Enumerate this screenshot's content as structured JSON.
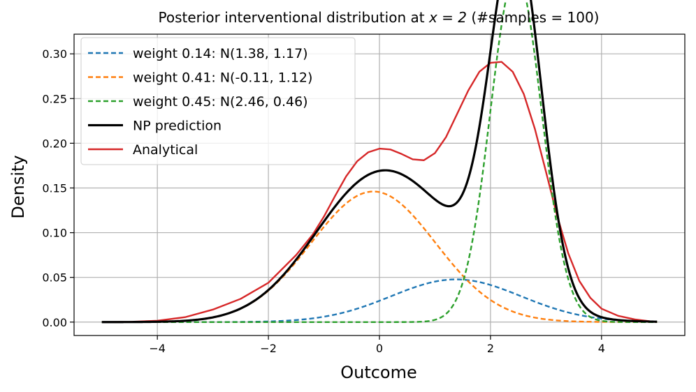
{
  "chart_data": {
    "type": "line",
    "title_prefix": "Posterior interventional distribution at ",
    "title_math": "x = 2",
    "title_suffix": " (#samples = 100)",
    "xlabel": "Outcome",
    "ylabel": "Density",
    "xlim": [
      -5.5,
      5.5
    ],
    "ylim": [
      -0.015,
      0.322
    ],
    "xticks": [
      -4,
      -2,
      0,
      2,
      4
    ],
    "xtick_labels": [
      "−4",
      "−2",
      "0",
      "2",
      "4"
    ],
    "yticks": [
      0.0,
      0.05,
      0.1,
      0.15,
      0.2,
      0.25,
      0.3
    ],
    "ytick_labels": [
      "0.00",
      "0.05",
      "0.10",
      "0.15",
      "0.20",
      "0.25",
      "0.30"
    ],
    "grid": true,
    "legend_position": "upper-left",
    "x_range": [
      -5,
      5
    ],
    "series": [
      {
        "name": "weight 0.14: N(1.38, 1.17)",
        "kind": "gaussian",
        "weight": 0.14,
        "mean": 1.38,
        "std": 1.17,
        "color": "#1f77b4",
        "dashed": true
      },
      {
        "name": "weight 0.41: N(-0.11, 1.12)",
        "kind": "gaussian",
        "weight": 0.41,
        "mean": -0.11,
        "std": 1.12,
        "color": "#ff7f0e",
        "dashed": true
      },
      {
        "name": "weight 0.45: N(2.46, 0.46)",
        "kind": "gaussian",
        "weight": 0.45,
        "mean": 2.46,
        "std": 0.46,
        "color": "#2ca02c",
        "dashed": true
      },
      {
        "name": "NP prediction",
        "kind": "mixture",
        "color": "#000000",
        "dashed": false
      },
      {
        "name": "Analytical",
        "kind": "points",
        "color": "#d62728",
        "dashed": false,
        "x": [
          -5,
          -4.5,
          -4,
          -3.5,
          -3,
          -2.5,
          -2,
          -1.5,
          -1.2,
          -1,
          -0.8,
          -0.6,
          -0.4,
          -0.2,
          0,
          0.2,
          0.4,
          0.6,
          0.8,
          1.0,
          1.2,
          1.4,
          1.6,
          1.8,
          2.0,
          2.2,
          2.4,
          2.6,
          2.8,
          3.0,
          3.2,
          3.4,
          3.6,
          3.8,
          4.0,
          4.3,
          4.6,
          5.0
        ],
        "y": [
          0.0,
          0.0003,
          0.0015,
          0.0055,
          0.014,
          0.026,
          0.044,
          0.075,
          0.098,
          0.118,
          0.141,
          0.163,
          0.18,
          0.19,
          0.194,
          0.193,
          0.188,
          0.182,
          0.181,
          0.189,
          0.207,
          0.233,
          0.259,
          0.28,
          0.29,
          0.291,
          0.28,
          0.255,
          0.216,
          0.168,
          0.119,
          0.077,
          0.046,
          0.027,
          0.015,
          0.007,
          0.003,
          0.0
        ]
      }
    ]
  }
}
